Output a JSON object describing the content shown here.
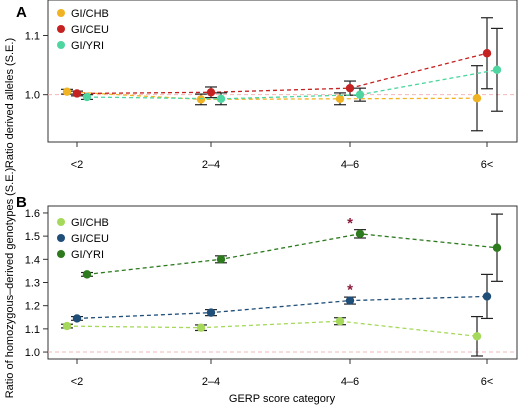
{
  "chart_data": [
    {
      "panel": "A",
      "type": "line",
      "categories": [
        "<2",
        "2–4",
        "4–6",
        "6<"
      ],
      "ylabel": "Ratio derived alleles (S.E.)",
      "yticks": [
        1.0,
        1.1
      ],
      "ylim": [
        0.92,
        1.16
      ],
      "reference_line": 1.0,
      "reference_color": "#f2b8b8",
      "legend_position": "top-left",
      "series": [
        {
          "name": "GI/CHB",
          "color": "#f0b323",
          "values": [
            1.005,
            0.992,
            0.993,
            0.994
          ],
          "se": [
            0.004,
            0.009,
            0.01,
            0.055
          ]
        },
        {
          "name": "GI/CEU",
          "color": "#c62121",
          "values": [
            1.002,
            1.004,
            1.011,
            1.07
          ],
          "se": [
            0.004,
            0.009,
            0.012,
            0.06
          ]
        },
        {
          "name": "GI/YRI",
          "color": "#4fd6a0",
          "values": [
            0.996,
            0.993,
            1.0,
            1.042
          ],
          "se": [
            0.004,
            0.01,
            0.011,
            0.07
          ]
        }
      ]
    },
    {
      "panel": "B",
      "type": "line",
      "categories": [
        "<2",
        "2–4",
        "4–6",
        "6<"
      ],
      "xlabel": "GERP score category",
      "ylabel": "Ratio of homozygous–derived genotypes (S.E.)",
      "yticks": [
        1.0,
        1.1,
        1.2,
        1.3,
        1.4,
        1.5,
        1.6
      ],
      "ylim": [
        0.97,
        1.63
      ],
      "reference_line": 1.0,
      "reference_color": "#f2b8b8",
      "legend_position": "top-left",
      "annotations": [
        {
          "text": "*",
          "category": "4–6",
          "y": 1.56,
          "color": "#8b1a3a"
        },
        {
          "text": "*",
          "category": "4–6",
          "y": 1.275,
          "color": "#8b1a3a"
        }
      ],
      "series": [
        {
          "name": "GI/CHB",
          "color": "#a6d95b",
          "values": [
            1.112,
            1.105,
            1.133,
            1.068
          ],
          "se": [
            0.008,
            0.012,
            0.015,
            0.085
          ]
        },
        {
          "name": "GI/CEU",
          "color": "#1f4e79",
          "values": [
            1.145,
            1.17,
            1.222,
            1.24
          ],
          "se": [
            0.008,
            0.013,
            0.015,
            0.095
          ]
        },
        {
          "name": "GI/YRI",
          "color": "#2d7a1f",
          "values": [
            1.335,
            1.4,
            1.51,
            1.45
          ],
          "se": [
            0.008,
            0.015,
            0.018,
            0.145
          ]
        }
      ]
    }
  ]
}
